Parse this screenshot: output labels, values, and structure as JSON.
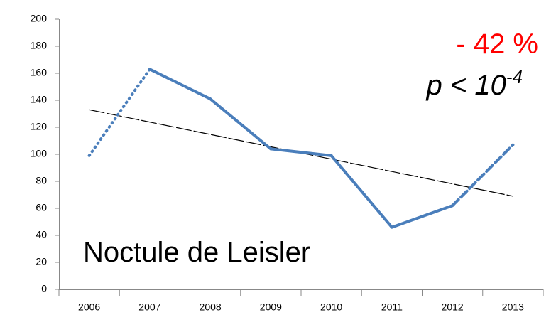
{
  "chart_data": {
    "type": "line",
    "categories": [
      "2006",
      "2007",
      "2008",
      "2009",
      "2010",
      "2011",
      "2012",
      "2013"
    ],
    "series": [
      {
        "color": "#4a7ebb",
        "values": [
          99,
          163,
          141,
          104,
          99,
          46,
          62,
          107
        ],
        "segment_styles": [
          "dotted",
          "solid",
          "solid",
          "solid",
          "solid",
          "solid",
          "dashed"
        ]
      }
    ],
    "trend": {
      "color": "#000000",
      "start": 133,
      "end": 69,
      "style": "long-dash"
    },
    "ylim": [
      0,
      200
    ],
    "yticks": [
      0,
      20,
      40,
      60,
      80,
      100,
      120,
      140,
      160,
      180,
      200
    ],
    "annotations": [
      {
        "text": "- 42 %",
        "color": "#ff0000"
      },
      {
        "text": "p < 10",
        "superscript": "-4",
        "color": "#000000"
      },
      {
        "text": "Noctule de Leisler",
        "color": "#000000"
      }
    ]
  }
}
